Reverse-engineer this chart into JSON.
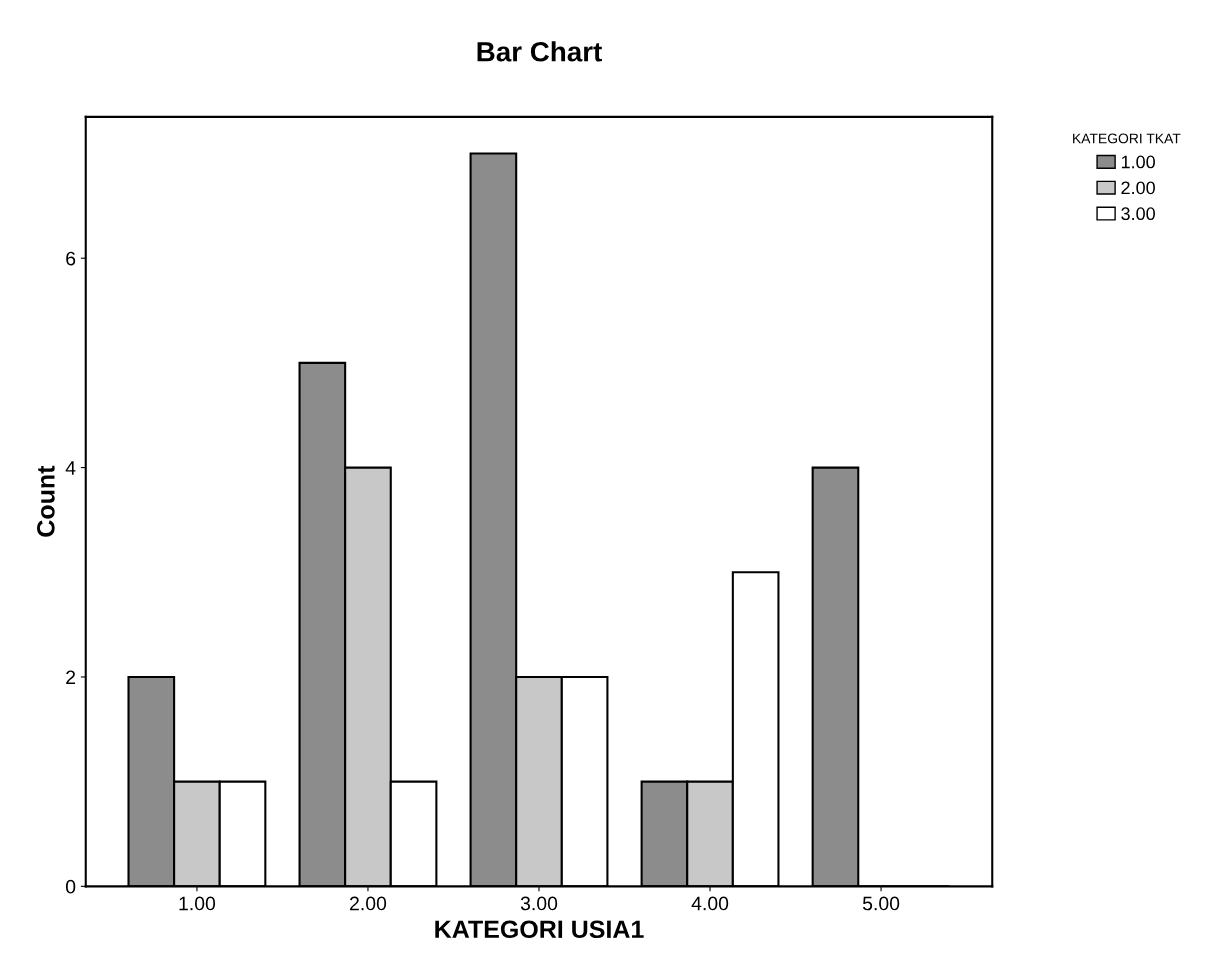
{
  "chart_data": {
    "type": "bar",
    "title": "Bar Chart",
    "xlabel": "KATEGORI USIA1",
    "ylabel": "Count",
    "legend_title": "KATEGORI TKAT",
    "categories": [
      "1.00",
      "2.00",
      "3.00",
      "4.00",
      "5.00"
    ],
    "series": [
      {
        "name": "1.00",
        "color": "#8c8c8c",
        "values": [
          2,
          5,
          7,
          1,
          4
        ]
      },
      {
        "name": "2.00",
        "color": "#c8c8c8",
        "values": [
          1,
          4,
          2,
          1,
          0
        ]
      },
      {
        "name": "3.00",
        "color": "#ffffff",
        "values": [
          1,
          1,
          2,
          3,
          0
        ]
      }
    ],
    "ylim": [
      0,
      7.35
    ],
    "yticks": [
      0,
      2,
      4,
      6
    ],
    "grid": false,
    "legend": "right"
  }
}
